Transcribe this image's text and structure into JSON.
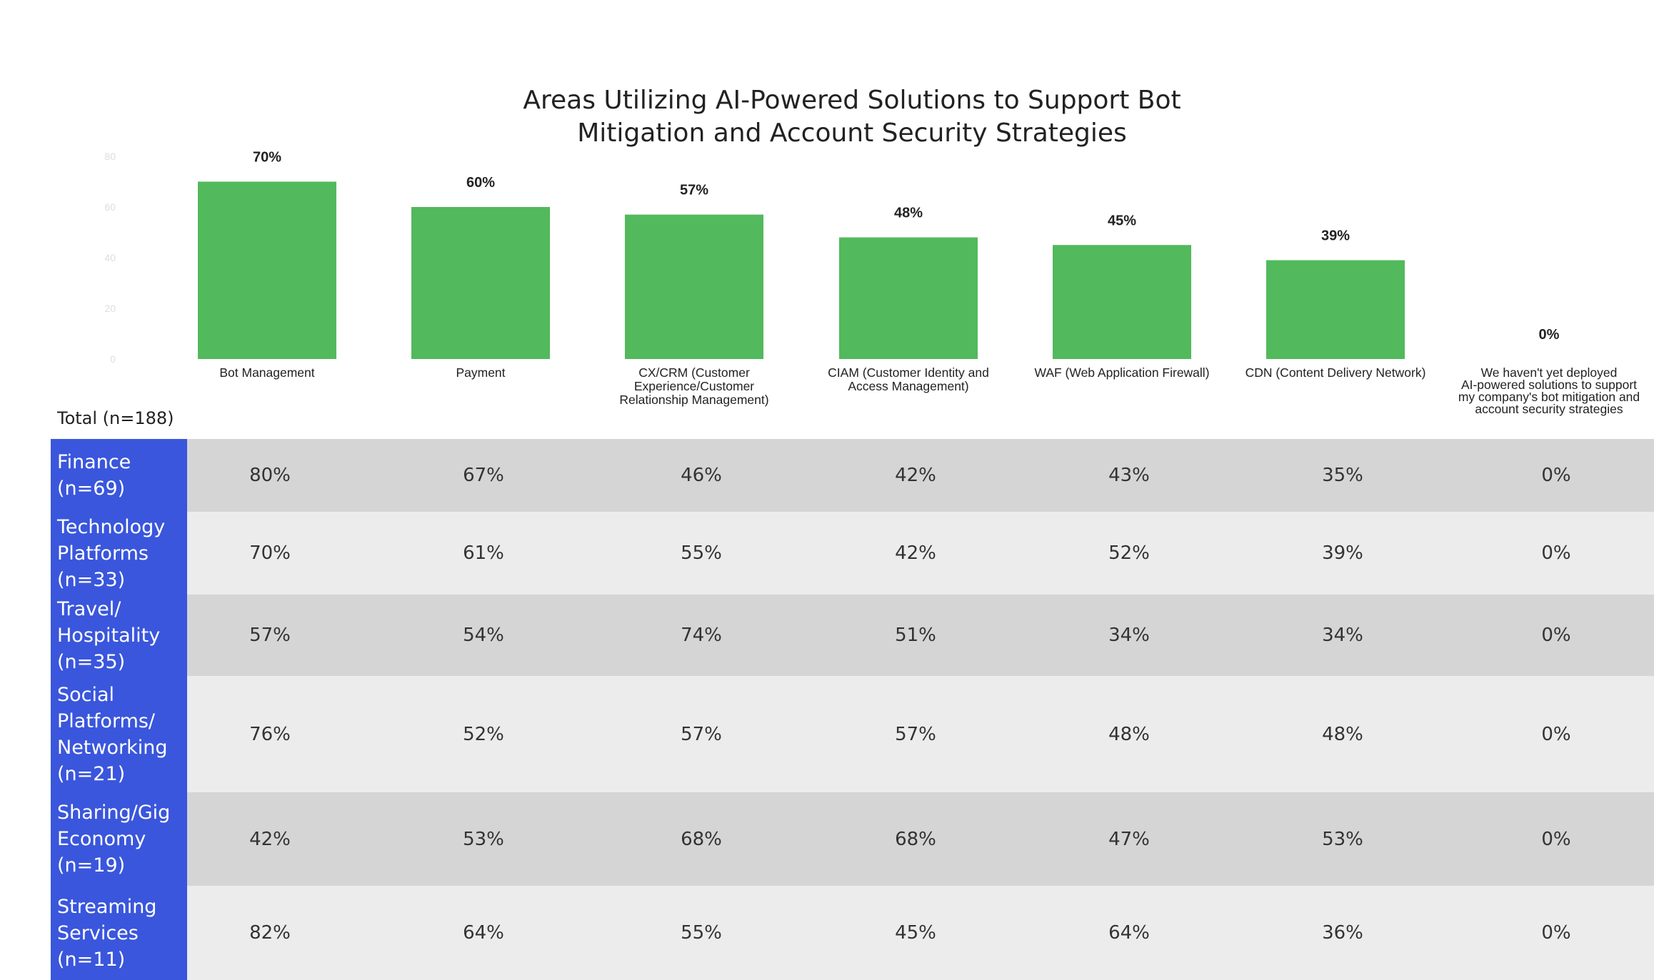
{
  "chart_data": {
    "type": "bar",
    "title_lines": [
      "Areas Utilizing AI-Powered Solutions to Support Bot",
      "Mitigation and Account Security Strategies"
    ],
    "y_ticks": [
      "80",
      "60",
      "40",
      "20",
      "0"
    ],
    "categories": [
      "Bot Management",
      "Payment",
      "CX/CRM (Customer Experience/Customer Relationship Management)",
      "CIAM (Customer Identity and Access Management)",
      "WAF (Web Application Firewall)",
      "CDN (Content Delivery Network)",
      "We haven't yet deployed AI-powered solutions to support my company's bot mitigation and account security strategies"
    ],
    "category_label_lines": [
      [
        "Bot Management"
      ],
      [
        "Payment"
      ],
      [
        "CX/CRM (Customer",
        "Experience/Customer",
        "Relationship Management)"
      ],
      [
        "CIAM (Customer Identity and",
        "Access Management)"
      ],
      [
        "WAF (Web Application Firewall)"
      ],
      [
        "CDN (Content Delivery Network)"
      ],
      [
        "We haven't yet deployed",
        "AI-powered solutions to support",
        "my company's bot mitigation and",
        "account security strategies"
      ]
    ],
    "values": [
      70,
      60,
      57,
      48,
      45,
      39,
      0
    ],
    "value_labels": [
      "70%",
      "60%",
      "57%",
      "48%",
      "45%",
      "39%",
      "0%"
    ],
    "ylim": [
      0,
      80
    ],
    "bar_color": "#52b95c",
    "grid": false
  },
  "table": {
    "total_label": "Total (n=188)",
    "label_color": "#3a56dc",
    "rows": [
      {
        "label_lines": [
          "Finance",
          "(n=69)"
        ],
        "values": [
          "80%",
          "67%",
          "46%",
          "42%",
          "43%",
          "35%",
          "0%"
        ]
      },
      {
        "label_lines": [
          "Technology",
          "Platforms",
          "(n=33)"
        ],
        "values": [
          "70%",
          "61%",
          "55%",
          "42%",
          "52%",
          "39%",
          "0%"
        ]
      },
      {
        "label_lines": [
          "Travel/",
          "Hospitality",
          "(n=35)"
        ],
        "values": [
          "57%",
          "54%",
          "74%",
          "51%",
          "34%",
          "34%",
          "0%"
        ]
      },
      {
        "label_lines": [
          "Social",
          "Platforms/",
          "Networking",
          "(n=21)"
        ],
        "values": [
          "76%",
          "52%",
          "57%",
          "57%",
          "48%",
          "48%",
          "0%"
        ]
      },
      {
        "label_lines": [
          "Sharing/Gig",
          "Economy",
          "(n=19)"
        ],
        "values": [
          "42%",
          "53%",
          "68%",
          "68%",
          "47%",
          "53%",
          "0%"
        ]
      },
      {
        "label_lines": [
          "Streaming",
          "Services",
          "(n=11)"
        ],
        "values": [
          "82%",
          "64%",
          "55%",
          "45%",
          "64%",
          "36%",
          "0%"
        ]
      }
    ]
  }
}
